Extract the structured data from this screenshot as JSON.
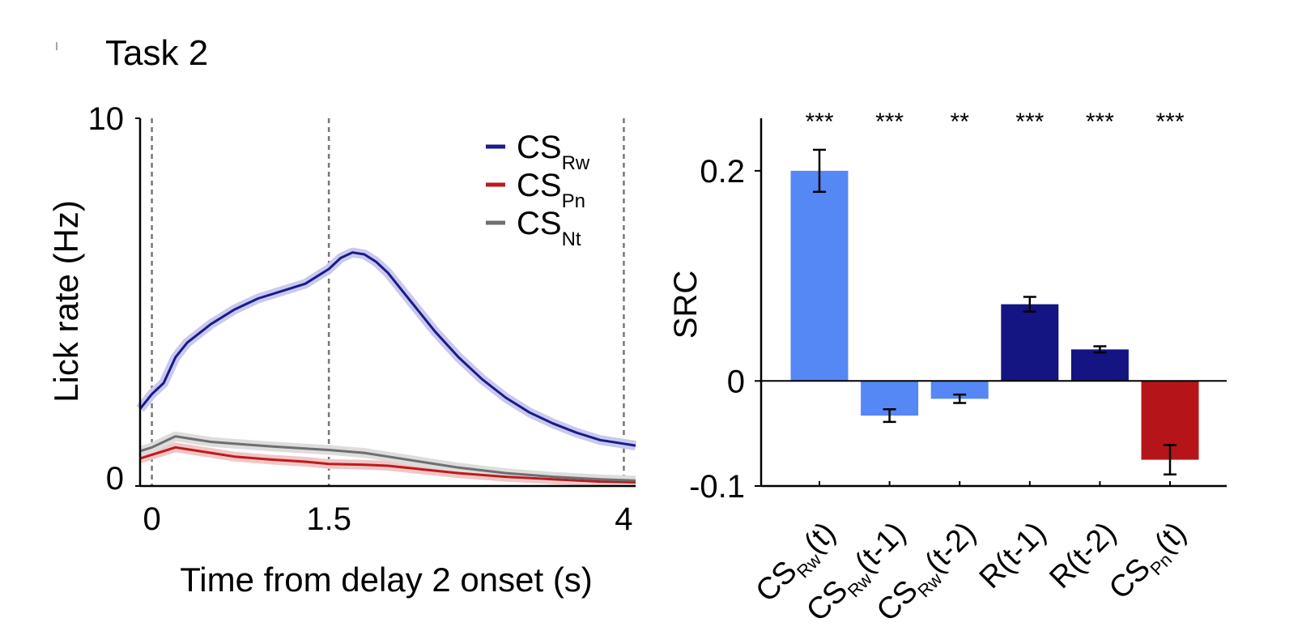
{
  "figure_title": "Task 2",
  "chart_data": [
    {
      "type": "line",
      "xlabel": "Time from delay 2 onset (s)",
      "ylabel": "Lick rate (Hz)",
      "xlim": [
        -0.1,
        4.1
      ],
      "ylim": [
        0,
        10
      ],
      "xticks": [
        {
          "value": 0,
          "label": "0"
        },
        {
          "value": 1.5,
          "label": "1.5"
        },
        {
          "value": 4,
          "label": "4"
        }
      ],
      "yticks": [
        {
          "value": 0,
          "label": "0"
        },
        {
          "value": 10,
          "label": "10"
        }
      ],
      "vlines": [
        0,
        1.5,
        4
      ],
      "legend_position": "top-right",
      "series": [
        {
          "name": "CS",
          "sub": "Rw",
          "color": "#1a1a8c",
          "shade": "#c9c9ee",
          "x": [
            -0.1,
            0,
            0.1,
            0.2,
            0.3,
            0.5,
            0.7,
            0.9,
            1.1,
            1.3,
            1.5,
            1.6,
            1.7,
            1.8,
            1.9,
            2.0,
            2.2,
            2.4,
            2.6,
            2.8,
            3.0,
            3.2,
            3.4,
            3.6,
            3.8,
            4.0,
            4.1
          ],
          "y": [
            2.1,
            2.5,
            2.8,
            3.5,
            3.9,
            4.4,
            4.8,
            5.1,
            5.3,
            5.5,
            5.9,
            6.2,
            6.35,
            6.3,
            6.1,
            5.8,
            5.0,
            4.2,
            3.5,
            2.9,
            2.4,
            2.0,
            1.7,
            1.45,
            1.25,
            1.15,
            1.1
          ]
        },
        {
          "name": "CS",
          "sub": "Pn",
          "color": "#c0191c",
          "shade": "#f0c6c6",
          "x": [
            -0.1,
            0,
            0.1,
            0.2,
            0.3,
            0.5,
            0.7,
            1.0,
            1.3,
            1.5,
            1.8,
            2.0,
            2.3,
            2.6,
            3.0,
            3.4,
            3.8,
            4.1
          ],
          "y": [
            0.75,
            0.85,
            0.95,
            1.05,
            1.0,
            0.9,
            0.8,
            0.72,
            0.66,
            0.6,
            0.58,
            0.55,
            0.45,
            0.35,
            0.25,
            0.18,
            0.12,
            0.1
          ]
        },
        {
          "name": "CS",
          "sub": "Nt",
          "color": "#6e6e6e",
          "shade": "#dddddd",
          "x": [
            -0.1,
            0,
            0.1,
            0.2,
            0.3,
            0.5,
            0.7,
            1.0,
            1.3,
            1.5,
            1.8,
            2.0,
            2.3,
            2.6,
            3.0,
            3.4,
            3.8,
            4.1
          ],
          "y": [
            0.95,
            1.05,
            1.2,
            1.35,
            1.3,
            1.2,
            1.15,
            1.08,
            1.02,
            0.98,
            0.9,
            0.8,
            0.65,
            0.5,
            0.35,
            0.25,
            0.18,
            0.15
          ]
        }
      ]
    },
    {
      "type": "bar",
      "ylabel": "SRC",
      "ylim": [
        -0.1,
        0.25
      ],
      "yticks": [
        {
          "value": -0.1,
          "label": "-0.1"
        },
        {
          "value": 0,
          "label": "0"
        },
        {
          "value": 0.2,
          "label": "0.2"
        }
      ],
      "categories": [
        {
          "pre": "CS",
          "sub": "Rw",
          "post": "(t)"
        },
        {
          "pre": "CS",
          "sub": "Rw",
          "post": "(t-1)"
        },
        {
          "pre": "CS",
          "sub": "Rw",
          "post": "(t-2)"
        },
        {
          "pre": "R",
          "sub": "",
          "post": "(t-1)"
        },
        {
          "pre": "R",
          "sub": "",
          "post": "(t-2)"
        },
        {
          "pre": "CS",
          "sub": "Pn",
          "post": "(t)"
        }
      ],
      "values": [
        0.2,
        -0.033,
        -0.017,
        0.073,
        0.03,
        -0.075
      ],
      "errors": [
        0.02,
        0.006,
        0.004,
        0.007,
        0.003,
        0.014
      ],
      "colors": [
        "#5588f5",
        "#5588f5",
        "#5588f5",
        "#141482",
        "#141482",
        "#b51518"
      ],
      "significance": [
        "***",
        "***",
        "**",
        "***",
        "***",
        "***"
      ]
    }
  ]
}
